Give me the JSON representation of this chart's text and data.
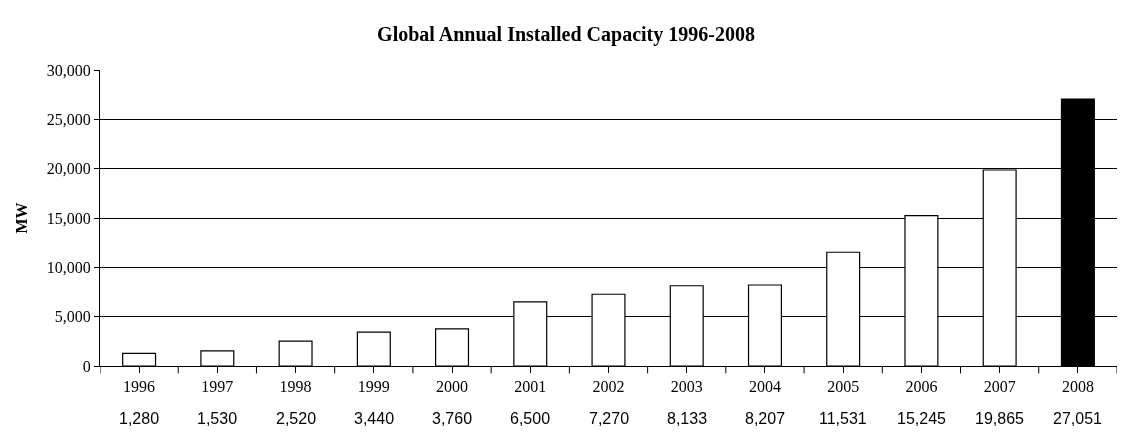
{
  "chart_data": {
    "type": "bar",
    "title": "Global Annual Installed Capacity 1996-2008",
    "ylabel": "MW",
    "categories": [
      "1996",
      "1997",
      "1998",
      "1999",
      "2000",
      "2001",
      "2002",
      "2003",
      "2004",
      "2005",
      "2006",
      "2007",
      "2008"
    ],
    "values": [
      1280,
      1530,
      2520,
      3440,
      3760,
      6500,
      7270,
      8133,
      8207,
      11531,
      15245,
      19865,
      27051
    ],
    "colors": [
      "#ffffff",
      "#ffffff",
      "#ffffff",
      "#ffffff",
      "#ffffff",
      "#ffffff",
      "#ffffff",
      "#ffffff",
      "#ffffff",
      "#ffffff",
      "#ffffff",
      "#ffffff",
      "#000000"
    ],
    "ylim": [
      0,
      30000
    ],
    "yticks": [
      {
        "value": 0,
        "label": "0"
      },
      {
        "value": 5000,
        "label": "5,000"
      },
      {
        "value": 10000,
        "label": "10,000"
      },
      {
        "value": 15000,
        "label": "15,000"
      },
      {
        "value": 20000,
        "label": "20,000"
      },
      {
        "value": 25000,
        "label": "25,000"
      },
      {
        "value": 30000,
        "label": "30,000"
      }
    ],
    "value_labels": [
      "1,280",
      "1,530",
      "2,520",
      "3,440",
      "3,760",
      "6,500",
      "7,270",
      "8,133",
      "8,207",
      "11,531",
      "15,245",
      "19,865",
      "27,051"
    ],
    "grid": "y",
    "legend": false
  }
}
